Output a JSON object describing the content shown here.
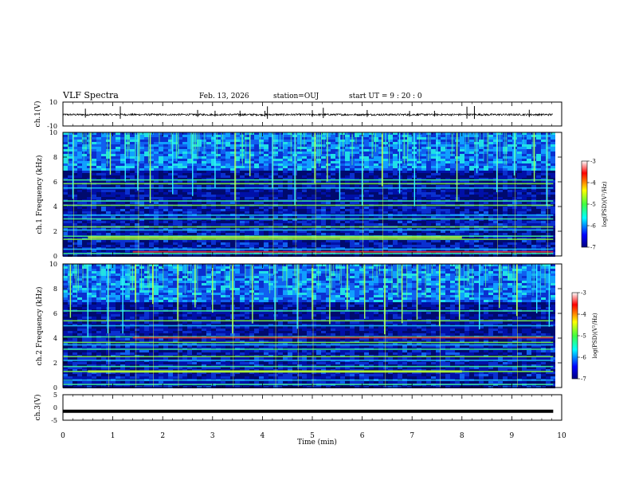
{
  "header": {
    "title": "VLF Spectra",
    "date": "Feb. 13, 2026",
    "station": "station=OUJ",
    "start_ut": "start UT =   9 : 20 : 0"
  },
  "chart_data": {
    "type": "heatmap",
    "xlabel": "Time (min)",
    "xlim": [
      0,
      10
    ],
    "xticks": [
      "0",
      "1",
      "2",
      "3",
      "4",
      "5",
      "6",
      "7",
      "8",
      "9",
      "10"
    ],
    "data_extent_min": 9.83,
    "panels": [
      {
        "id": "ch1-waveform",
        "type": "line",
        "ylabel": "ch.1(V)",
        "ylim": [
          -10,
          10
        ],
        "yticks": [
          "10",
          "-10"
        ],
        "baseline": -0.5,
        "spike_times_min": [
          0.45,
          1.15,
          2.7,
          3.05,
          3.55,
          4.05,
          4.1,
          5.0,
          5.22,
          6.1,
          6.95,
          7.45,
          8.1,
          8.25,
          9.35
        ]
      },
      {
        "id": "ch1-spectrogram",
        "type": "heatmap",
        "ylabel": "ch.1 Frequency (kHz)",
        "ylim": [
          0,
          10
        ],
        "yticks": [
          "0",
          "2",
          "4",
          "6",
          "8",
          "10"
        ],
        "colorbar": {
          "label": "log(PSD)(V²/Hz)",
          "range": [
            -7,
            -3
          ],
          "ticks": [
            "-3",
            "-4",
            "-5",
            "-6",
            "-7"
          ]
        },
        "bands_kHz": [
          0.2,
          0.55,
          1.35,
          1.6,
          2.1,
          2.35,
          3.0,
          3.3,
          4.1,
          4.45,
          5.5,
          5.85,
          6.15
        ],
        "strong_band_kHz": [
          0.3,
          0.4
        ],
        "sferic_times_min": [
          0.2,
          0.55,
          0.95,
          1.25,
          1.5,
          1.75,
          2.2,
          2.6,
          3.05,
          3.45,
          3.75,
          4.2,
          4.65,
          5.05,
          5.3,
          5.55,
          6.0,
          6.4,
          6.75,
          7.05,
          7.5,
          7.9,
          8.3,
          8.7,
          9.05,
          9.45,
          9.7
        ]
      },
      {
        "id": "ch2-spectrogram",
        "type": "heatmap",
        "ylabel": "ch.2 Frequency (kHz)",
        "ylim": [
          0,
          10
        ],
        "yticks": [
          "0",
          "2",
          "4",
          "6",
          "8",
          "10"
        ],
        "colorbar": {
          "label": "log(PSD)(V²/Hz)",
          "range": [
            -7,
            -3
          ],
          "ticks": [
            "-3",
            "-4",
            "-5",
            "-6",
            "-7"
          ]
        },
        "bands_kHz": [
          0.25,
          0.6,
          1.3,
          1.7,
          2.2,
          2.5,
          3.1,
          3.45,
          3.65,
          4.1,
          5.0,
          5.4,
          6.2
        ],
        "strong_band_kHz": [
          4.0,
          4.1
        ],
        "sferic_times_min": [
          0.15,
          0.5,
          0.9,
          1.2,
          1.45,
          1.8,
          2.3,
          2.65,
          3.0,
          3.4,
          3.8,
          4.25,
          4.7,
          5.0,
          5.35,
          5.7,
          6.05,
          6.45,
          6.8,
          7.1,
          7.55,
          7.95,
          8.35,
          8.75,
          9.1,
          9.5,
          9.75
        ]
      },
      {
        "id": "ch3-waveform",
        "type": "line",
        "ylabel": "ch.3(V)",
        "ylim": [
          -5,
          5
        ],
        "yticks": [
          "5",
          "0",
          "-5"
        ],
        "baseline": -1.5
      }
    ]
  }
}
